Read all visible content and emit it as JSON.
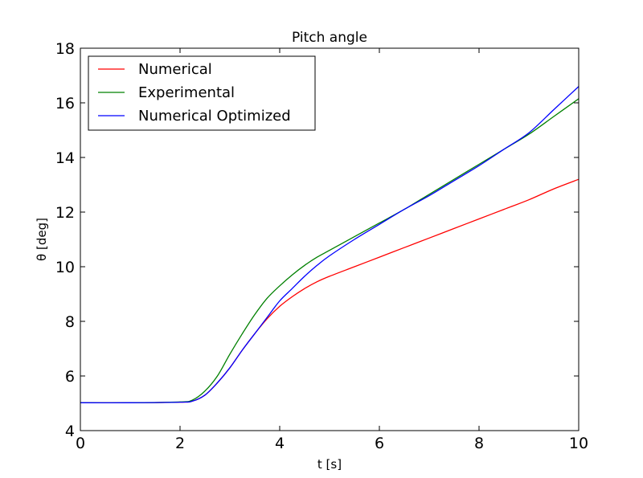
{
  "chart_data": {
    "type": "line",
    "title": "Pitch angle",
    "xlabel": "t [s]",
    "ylabel": "θ [deg]",
    "xlim": [
      0,
      10
    ],
    "ylim": [
      4,
      18
    ],
    "xticks": [
      0,
      2,
      4,
      6,
      8,
      10
    ],
    "yticks": [
      4,
      6,
      8,
      10,
      12,
      14,
      16,
      18
    ],
    "grid": false,
    "legend_position": "top-left",
    "x": [
      0,
      1,
      2,
      2.25,
      2.5,
      2.75,
      3,
      3.25,
      3.5,
      3.75,
      4,
      4.25,
      4.5,
      4.75,
      5,
      5.5,
      6,
      6.5,
      7,
      7.5,
      8,
      8.5,
      9,
      9.5,
      10
    ],
    "series": [
      {
        "name": "Numerical",
        "color": "#ff0000",
        "values": [
          5.02,
          5.02,
          5.04,
          5.08,
          5.3,
          5.75,
          6.3,
          6.95,
          7.55,
          8.1,
          8.55,
          8.9,
          9.2,
          9.45,
          9.65,
          10.0,
          10.35,
          10.7,
          11.05,
          11.4,
          11.75,
          12.1,
          12.45,
          12.85,
          13.2
        ]
      },
      {
        "name": "Experimental",
        "color": "#008000",
        "values": [
          5.02,
          5.02,
          5.05,
          5.12,
          5.45,
          6.0,
          6.8,
          7.55,
          8.25,
          8.85,
          9.3,
          9.7,
          10.05,
          10.35,
          10.6,
          11.1,
          11.6,
          12.1,
          12.65,
          13.2,
          13.75,
          14.3,
          14.85,
          15.5,
          16.15
        ]
      },
      {
        "name": "Numerical Optimized",
        "color": "#0000ff",
        "values": [
          5.02,
          5.02,
          5.04,
          5.08,
          5.3,
          5.75,
          6.3,
          6.95,
          7.55,
          8.15,
          8.75,
          9.2,
          9.65,
          10.05,
          10.4,
          11.0,
          11.55,
          12.1,
          12.6,
          13.15,
          13.7,
          14.3,
          14.9,
          15.75,
          16.6
        ]
      }
    ]
  }
}
